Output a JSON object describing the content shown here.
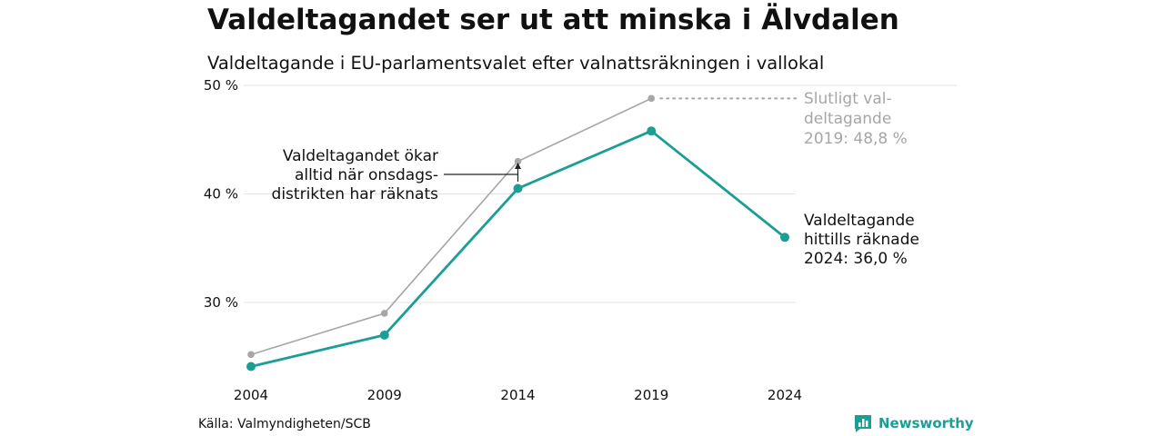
{
  "header": {
    "title": "Valdeltagandet ser ut att minska i Älvdalen",
    "subtitle": "Valdeltagande i EU-parlamentsvalet efter valnattsräkningen i vallokal"
  },
  "colors": {
    "current": "#1a9e96",
    "final": "#a6a6a6",
    "grid": "#e5e5e5",
    "text": "#111111",
    "logo": "#1a9e96"
  },
  "chart_data": {
    "type": "line",
    "x": [
      2004,
      2009,
      2014,
      2019,
      2024
    ],
    "ylim": [
      22,
      50
    ],
    "yticks": [
      30,
      40,
      50
    ],
    "ytick_labels": [
      "30 %",
      "40 %",
      "50 %"
    ],
    "xtick_labels": [
      "2004",
      "2009",
      "2014",
      "2019",
      "2024"
    ],
    "grid": true,
    "series": [
      {
        "key": "final",
        "values": [
          25.2,
          29.0,
          43.0,
          48.8,
          null
        ]
      },
      {
        "key": "current",
        "values": [
          24.1,
          27.0,
          40.5,
          45.8,
          36.0
        ]
      }
    ],
    "annotations": {
      "final_2019": [
        "Slutligt val-",
        "deltagande",
        "2019: 48,8 %"
      ],
      "current_2024": [
        "Valdeltagande",
        "hittills räknade",
        "2024: 36,0 %"
      ],
      "note_2014": [
        "Valdeltagandet ökar",
        "alltid när onsdags-",
        "distrikten har räknats"
      ]
    }
  },
  "footer": {
    "source": "Källa: Valmyndigheten/SCB",
    "logo_text": "Newsworthy",
    "logo_icon": "bar-chart-speech-icon"
  }
}
